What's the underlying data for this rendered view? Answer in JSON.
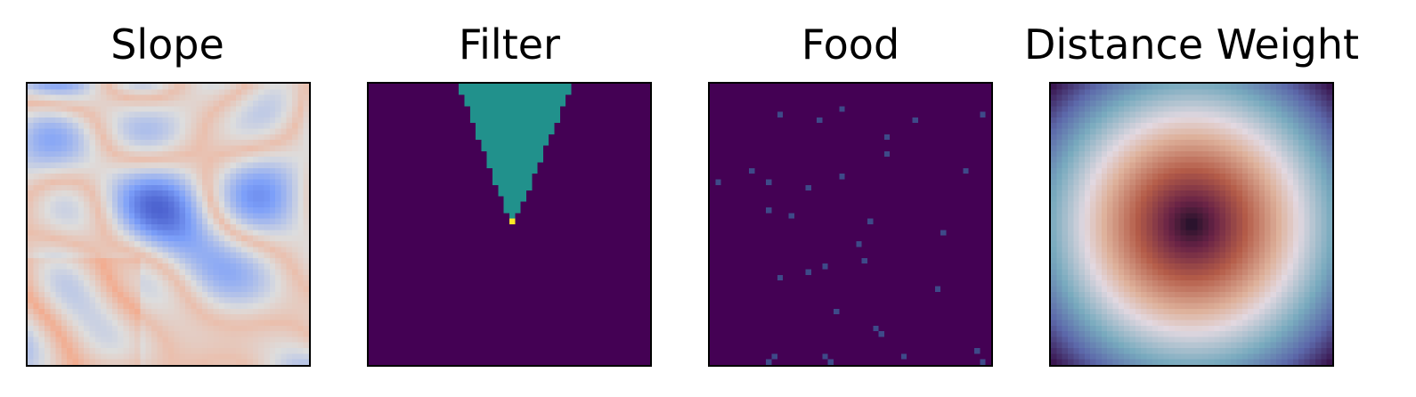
{
  "chart_data": [
    {
      "type": "heatmap",
      "title": "Slope",
      "grid_size": 50,
      "colormap": "coolwarm",
      "range": "mostly low-to-mid values (blue) with scattered high patches (light orange) toward left/bottom",
      "grid": false
    },
    {
      "type": "heatmap",
      "title": "Filter",
      "grid_size": 50,
      "colormap": "viridis",
      "background_value": 0,
      "cone_value": 0.5,
      "apex_value": 1,
      "cone_top_row": 0,
      "cone_top_cols": [
        16,
        36
      ],
      "cone_apex_row": 24,
      "cone_apex_col": 25,
      "grid": false
    },
    {
      "type": "heatmap",
      "title": "Food",
      "grid_size": 50,
      "colormap": "viridis",
      "background_value": 0,
      "points": [
        [
          5,
          12
        ],
        [
          6,
          19
        ],
        [
          4,
          23
        ],
        [
          9,
          31
        ],
        [
          6,
          36
        ],
        [
          5,
          48
        ],
        [
          12,
          31
        ],
        [
          15,
          45
        ],
        [
          15,
          7
        ],
        [
          16,
          23
        ],
        [
          17,
          1
        ],
        [
          17,
          10
        ],
        [
          18,
          17
        ],
        [
          22,
          10
        ],
        [
          23,
          14
        ],
        [
          24,
          28
        ],
        [
          26,
          41
        ],
        [
          28,
          26
        ],
        [
          31,
          27
        ],
        [
          32,
          20
        ],
        [
          33,
          17
        ],
        [
          34,
          12
        ],
        [
          36,
          40
        ],
        [
          40,
          22
        ],
        [
          43,
          29
        ],
        [
          44,
          30
        ],
        [
          48,
          20
        ],
        [
          49,
          21
        ],
        [
          49,
          10
        ],
        [
          48,
          11
        ],
        [
          48,
          34
        ],
        [
          49,
          48
        ],
        [
          47,
          47
        ]
      ],
      "grid": false
    },
    {
      "type": "heatmap",
      "title": "Distance Weight",
      "grid_size": 50,
      "colormap": "twilight",
      "pattern": "radial from center",
      "grid": false
    }
  ]
}
